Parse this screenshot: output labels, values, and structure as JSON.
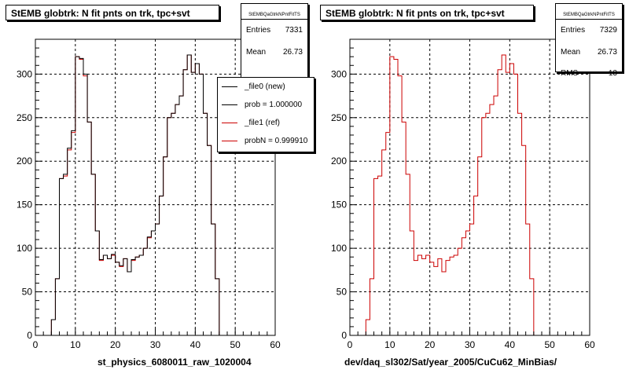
{
  "chart_data": [
    {
      "type": "histogram",
      "title": "StEMB globtrk: N fit pnts on trk, tpc+svt",
      "xlabel": "st_physics_6080011_raw_1020004",
      "xlim": [
        0,
        60
      ],
      "ylim": [
        0,
        340
      ],
      "xticks": [
        0,
        10,
        20,
        30,
        40,
        50,
        60
      ],
      "yticks": [
        0,
        50,
        100,
        150,
        200,
        250,
        300
      ],
      "grid": true,
      "bin_edges_start": 0,
      "bin_width": 1,
      "stats": {
        "name": "StEMBQaGtrkNPntFitTS",
        "entries": "7331",
        "mean": "26.73"
      },
      "legend": {
        "placement": "upper-right",
        "entries": [
          "_file0 (new)",
          "prob = 1.000000",
          "_file1 (ref)",
          "probN = 0.999910"
        ]
      },
      "series": [
        {
          "name": "_file0 (new)",
          "color": "#000000",
          "values": [
            0,
            0,
            0,
            0,
            18,
            65,
            180,
            185,
            215,
            235,
            320,
            318,
            300,
            245,
            185,
            120,
            87,
            92,
            88,
            93,
            84,
            80,
            88,
            73,
            87,
            90,
            92,
            100,
            113,
            120,
            128,
            160,
            205,
            250,
            255,
            265,
            275,
            305,
            322,
            302,
            312,
            300,
            255,
            218,
            128,
            65,
            0,
            0,
            0,
            0,
            0,
            0,
            0,
            0,
            0,
            0,
            0,
            0,
            0,
            0
          ]
        },
        {
          "name": "_file1 (ref)",
          "color": "#cc0000",
          "values": [
            0,
            0,
            0,
            0,
            18,
            65,
            180,
            183,
            213,
            233,
            320,
            317,
            298,
            245,
            185,
            120,
            86,
            92,
            88,
            92,
            84,
            79,
            88,
            73,
            86,
            90,
            92,
            100,
            112,
            120,
            128,
            160,
            205,
            250,
            255,
            265,
            275,
            305,
            322,
            302,
            312,
            300,
            255,
            218,
            128,
            65,
            0,
            0,
            0,
            0,
            0,
            0,
            0,
            0,
            0,
            0,
            0,
            0,
            0,
            0
          ]
        }
      ]
    },
    {
      "type": "histogram",
      "title": "StEMB globtrk: N fit pnts on trk, tpc+svt",
      "xlabel": "dev/daq_sl302/Sat/year_2005/CuCu62_MinBias/",
      "xlim": [
        0,
        60
      ],
      "ylim": [
        0,
        340
      ],
      "xticks": [
        0,
        10,
        20,
        30,
        40,
        50,
        60
      ],
      "yticks": [
        0,
        50,
        100,
        150,
        200,
        250,
        300
      ],
      "grid": true,
      "bin_edges_start": 0,
      "bin_width": 1,
      "stats": {
        "name": "StEMBQaGtrkNPntFitTS",
        "entries": "7329",
        "mean": "26.73",
        "rms": "13"
      },
      "series": [
        {
          "name": "",
          "color": "#cc0000",
          "values": [
            0,
            0,
            0,
            0,
            18,
            65,
            180,
            183,
            213,
            233,
            320,
            317,
            298,
            245,
            185,
            120,
            86,
            92,
            88,
            92,
            84,
            79,
            88,
            73,
            86,
            90,
            92,
            100,
            112,
            120,
            128,
            160,
            205,
            250,
            255,
            265,
            275,
            305,
            322,
            302,
            312,
            300,
            255,
            218,
            128,
            65,
            0,
            0,
            0,
            0,
            0,
            0,
            0,
            0,
            0,
            0,
            0,
            0,
            0,
            0
          ]
        }
      ]
    }
  ]
}
